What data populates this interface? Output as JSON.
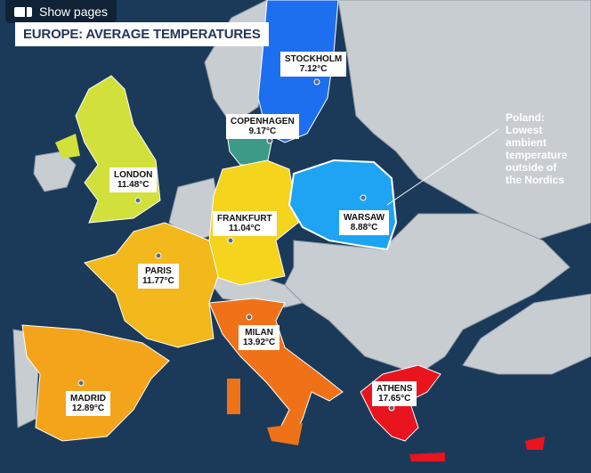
{
  "toolbar": {
    "show_pages_label": "Show pages",
    "show_pages_icon": "pages-icon"
  },
  "title": "EUROPE: AVERAGE TEMPERATURES",
  "cities": [
    {
      "name": "STOCKHOLM",
      "temp": "7.12°C",
      "color": "#1e6ff0"
    },
    {
      "name": "COPENHAGEN",
      "temp": "9.17°C",
      "color": "#3c9a86"
    },
    {
      "name": "LONDON",
      "temp": "11.48°C",
      "color": "#d2e03c"
    },
    {
      "name": "FRANKFURT",
      "temp": "11.04°C",
      "color": "#f4d41c"
    },
    {
      "name": "WARSAW",
      "temp": "8.88°C",
      "color": "#1ea4f2"
    },
    {
      "name": "PARIS",
      "temp": "11.77°C",
      "color": "#f2b81c"
    },
    {
      "name": "MILAN",
      "temp": "13.92°C",
      "color": "#f07218"
    },
    {
      "name": "MADRID",
      "temp": "12.89°C",
      "color": "#f4a41a"
    },
    {
      "name": "ATHENS",
      "temp": "17.65°C",
      "color": "#e8141e"
    }
  ],
  "annotation": {
    "lines": [
      "Poland:",
      "Lowest",
      "ambient",
      "temperature",
      "outside of",
      "the Nordics"
    ]
  },
  "colors": {
    "sea": "#1b3a5a",
    "other_land": "#c8cdd2"
  }
}
